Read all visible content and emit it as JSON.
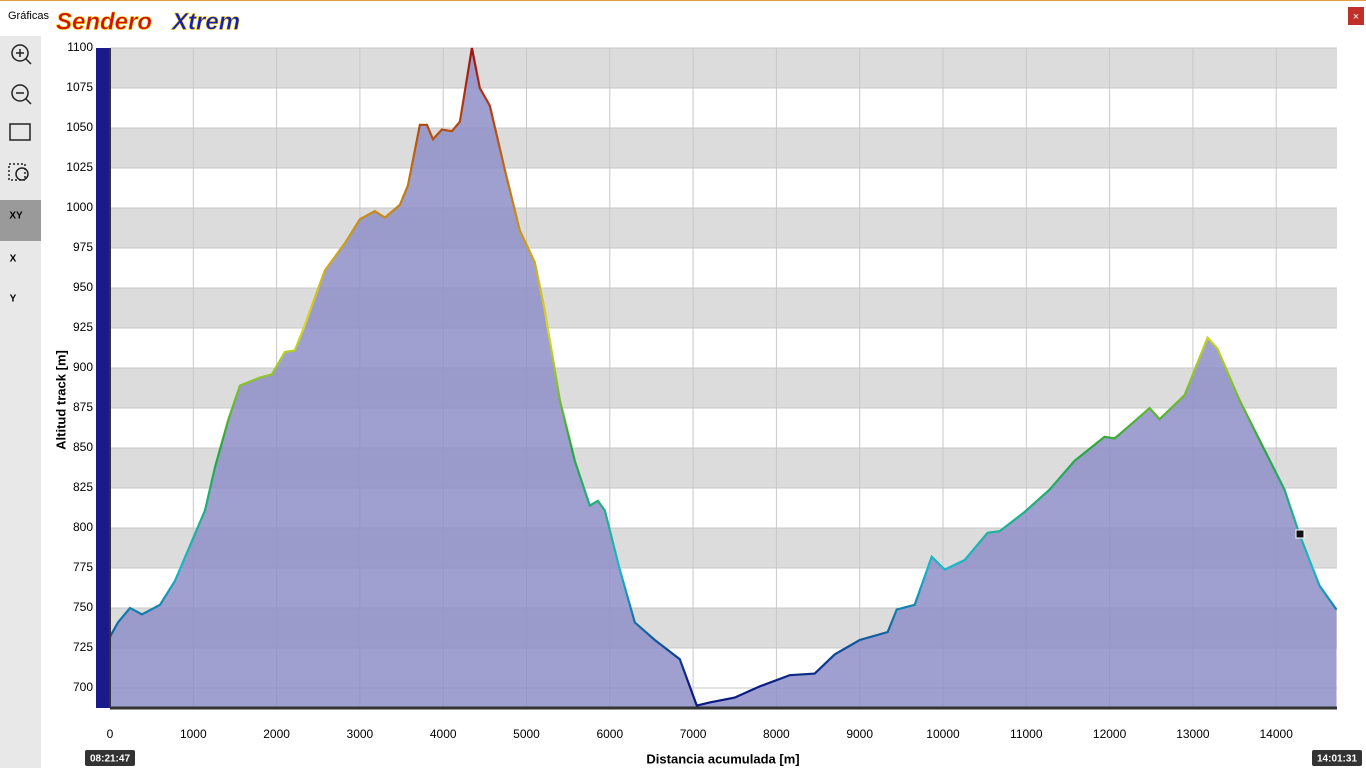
{
  "window": {
    "title": "Gráficas",
    "logo": [
      "Sendero",
      "Xtrem"
    ],
    "toolbar": [
      "XY",
      "X",
      "Y"
    ]
  },
  "chart_data": {
    "type": "area",
    "x_label": "Distancia acumulada [m]",
    "y_label": "Altitud track [m]",
    "time_markers": [
      "08:21:47",
      "14:01:31"
    ],
    "x": [
      0,
      96,
      240,
      384,
      600,
      780,
      960,
      1140,
      1260,
      1416,
      1560,
      1800,
      1944,
      2100,
      2220,
      2340,
      2580,
      2820,
      3000,
      3180,
      3300,
      3480,
      3576,
      3720,
      3804,
      3876,
      3984,
      4104,
      4200,
      4344,
      4440,
      4560,
      4740,
      4920,
      5100,
      5220,
      5400,
      5580,
      5760,
      5856,
      5940,
      6120,
      6300,
      6540,
      6840,
      7044,
      7200,
      7500,
      7800,
      8160,
      8460,
      8700,
      9000,
      9336,
      9444,
      9660,
      9864,
      10020,
      10260,
      10536,
      10680,
      10980,
      11280,
      11580,
      11940,
      12060,
      12240,
      12480,
      12600,
      12900,
      13176,
      13296,
      13560,
      13800,
      14100,
      14280,
      14520,
      14724
    ],
    "values": [
      732,
      741,
      750,
      746,
      752,
      767,
      789,
      811,
      838,
      867,
      889,
      894,
      896,
      910,
      911,
      927,
      961,
      978,
      993,
      998,
      994,
      1002,
      1014,
      1052,
      1052,
      1043,
      1049,
      1048,
      1054,
      1100,
      1075,
      1064,
      1024,
      986,
      966,
      936,
      880,
      842,
      814,
      817,
      811,
      774,
      741,
      730,
      718,
      689,
      691,
      694,
      701,
      708,
      709,
      721,
      730,
      735,
      749,
      752,
      782,
      774,
      780,
      797,
      798,
      810,
      824,
      842,
      857,
      856,
      864,
      875,
      868,
      883,
      919,
      912,
      880,
      855,
      824,
      796,
      764,
      749
    ],
    "xlim": [
      0,
      14730
    ],
    "ylim": [
      687.5,
      1100
    ],
    "xticks": [
      0,
      1000,
      2000,
      3000,
      4000,
      5000,
      6000,
      7000,
      8000,
      9000,
      10000,
      11000,
      12000,
      13000,
      14000
    ],
    "yticks": [
      700,
      725,
      750,
      775,
      800,
      825,
      850,
      875,
      900,
      925,
      950,
      975,
      1000,
      1025,
      1050,
      1075,
      1100
    ],
    "fill_color": "#8e8ec8",
    "band_color": "#dcdcdc",
    "grid": true,
    "line_gradient": [
      {
        "value": 700,
        "color": "#0a1a80"
      },
      {
        "value": 775,
        "color": "#19b8c8"
      },
      {
        "value": 850,
        "color": "#28a838"
      },
      {
        "value": 925,
        "color": "#d8d820"
      },
      {
        "value": 1025,
        "color": "#c06a10"
      },
      {
        "value": 1100,
        "color": "#a01010"
      }
    ]
  }
}
